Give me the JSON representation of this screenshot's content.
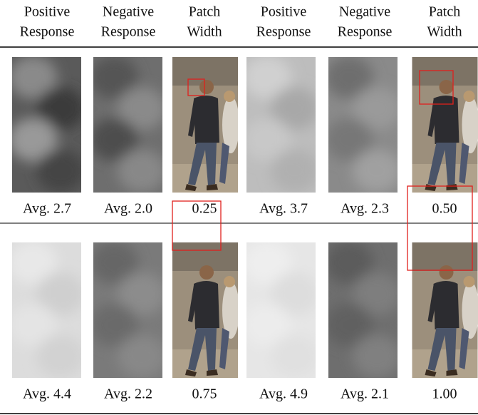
{
  "header": [
    [
      "Positive",
      "Response"
    ],
    [
      "Negative",
      "Response"
    ],
    [
      "Patch",
      "Width"
    ],
    [
      "Positive",
      "Response"
    ],
    [
      "Negative",
      "Response"
    ],
    [
      "Patch",
      "Width"
    ]
  ],
  "rows": [
    [
      "Avg. 2.7",
      "Avg. 2.0",
      "0.25",
      "Avg. 3.7",
      "Avg. 2.3",
      "0.50"
    ],
    [
      "Avg. 4.4",
      "Avg. 2.2",
      "0.75",
      "Avg. 4.9",
      "Avg. 2.1",
      "1.00"
    ]
  ]
}
